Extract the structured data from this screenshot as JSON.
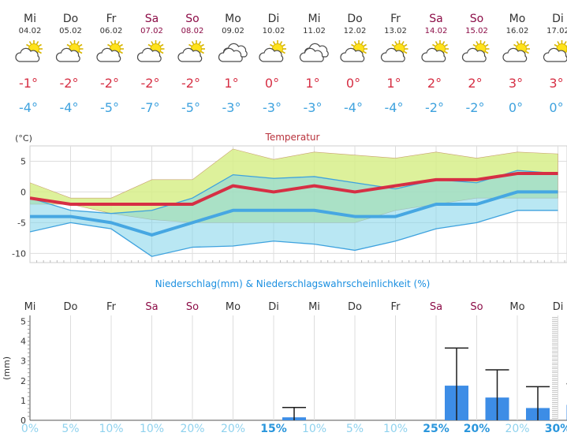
{
  "days": [
    {
      "name": "Mi",
      "date": "04.02",
      "weekend": false,
      "icon": "partly-cloudy-sun-icon",
      "max": "-1°",
      "min": "-4°"
    },
    {
      "name": "Do",
      "date": "05.02",
      "weekend": false,
      "icon": "partly-cloudy-sun-icon",
      "max": "-2°",
      "min": "-4°"
    },
    {
      "name": "Fr",
      "date": "06.02",
      "weekend": false,
      "icon": "partly-cloudy-sun-icon",
      "max": "-2°",
      "min": "-5°"
    },
    {
      "name": "Sa",
      "date": "07.02",
      "weekend": true,
      "icon": "partly-cloudy-sun-icon",
      "max": "-2°",
      "min": "-7°"
    },
    {
      "name": "So",
      "date": "08.02",
      "weekend": true,
      "icon": "partly-cloudy-sun-icon",
      "max": "-2°",
      "min": "-5°"
    },
    {
      "name": "Mo",
      "date": "09.02",
      "weekend": false,
      "icon": "cloudy-icon",
      "max": "1°",
      "min": "-3°"
    },
    {
      "name": "Di",
      "date": "10.02",
      "weekend": false,
      "icon": "partly-cloudy-sun-icon",
      "max": "0°",
      "min": "-3°"
    },
    {
      "name": "Mi",
      "date": "11.02",
      "weekend": false,
      "icon": "cloudy-icon",
      "max": "1°",
      "min": "-3°"
    },
    {
      "name": "Do",
      "date": "12.02",
      "weekend": false,
      "icon": "partly-cloudy-sun-icon",
      "max": "0°",
      "min": "-4°"
    },
    {
      "name": "Fr",
      "date": "13.02",
      "weekend": false,
      "icon": "partly-cloudy-sun-icon",
      "max": "1°",
      "min": "-4°"
    },
    {
      "name": "Sa",
      "date": "14.02",
      "weekend": true,
      "icon": "partly-cloudy-sun-icon",
      "max": "2°",
      "min": "-2°"
    },
    {
      "name": "So",
      "date": "15.02",
      "weekend": true,
      "icon": "partly-cloudy-sun-icon",
      "max": "2°",
      "min": "-2°"
    },
    {
      "name": "Mo",
      "date": "16.02",
      "weekend": false,
      "icon": "partly-cloudy-sun-icon",
      "max": "3°",
      "min": "0°"
    },
    {
      "name": "Di",
      "date": "17.02",
      "weekend": false,
      "icon": "partly-cloudy-sun-icon",
      "max": "3°",
      "min": "0°"
    }
  ],
  "colors": {
    "max": "#d62f44",
    "min": "#3ea2de",
    "weekend": "#8c0d47",
    "weekday": "#333333"
  },
  "chart_data": [
    {
      "type": "line",
      "title": "Temperatur",
      "ylabel": "(°C)",
      "ylim": [
        -11.5,
        7.5
      ],
      "yticks": [
        5,
        0,
        -5,
        -10
      ],
      "grid": true,
      "categories": [
        "Mi",
        "Do",
        "Fr",
        "Sa",
        "So",
        "Mo",
        "Di",
        "Mi",
        "Do",
        "Fr",
        "Sa",
        "So",
        "Mo",
        "Di"
      ],
      "series": [
        {
          "role": "max",
          "values": [
            -1,
            -2,
            -2,
            -2,
            -2,
            1,
            0,
            1,
            0,
            1,
            2,
            2,
            3,
            3
          ]
        },
        {
          "role": "min",
          "values": [
            -4,
            -4,
            -5,
            -7,
            -5,
            -3,
            -3,
            -3,
            -4,
            -4,
            -2,
            -2,
            0,
            0
          ]
        },
        {
          "role": "max-range-upper",
          "values": [
            1.5,
            -1,
            -1,
            2,
            2,
            7,
            5.3,
            6.5,
            6,
            5.5,
            6.5,
            5.5,
            6.5,
            6.2
          ]
        },
        {
          "role": "max-range-lower",
          "values": [
            -2,
            -2,
            -3.5,
            -4.5,
            -5,
            -5,
            -5,
            -5,
            -5,
            -3,
            -2,
            -1,
            -1,
            -1
          ]
        },
        {
          "role": "min-range-upper",
          "values": [
            -1,
            -3,
            -3.5,
            -3,
            -1,
            2.8,
            2.2,
            2.5,
            1.5,
            0.5,
            2,
            1.5,
            3.5,
            3
          ]
        },
        {
          "role": "min-range-lower",
          "values": [
            -6.5,
            -5,
            -6,
            -10.5,
            -9,
            -8.8,
            -8,
            -8.5,
            -9.5,
            -8,
            -6,
            -5,
            -3,
            -3
          ]
        }
      ]
    },
    {
      "type": "bar",
      "title": "Niederschlag(mm) & Niederschlagswahrscheinlichkeit (%)",
      "ylabel": "(mm)",
      "ylim": [
        0,
        5.3
      ],
      "yticks": [
        5,
        4,
        3,
        2,
        1,
        0
      ],
      "categories": [
        "Mi",
        "Do",
        "Fr",
        "Sa",
        "So",
        "Mo",
        "Di",
        "Mi",
        "Do",
        "Fr",
        "Sa",
        "So",
        "Mo",
        "Di"
      ],
      "values": [
        0,
        0,
        0,
        0,
        0,
        0,
        0.15,
        0,
        0,
        0,
        1.75,
        1.15,
        0.62,
        0.78
      ],
      "error_upper": [
        null,
        null,
        null,
        null,
        null,
        null,
        0.65,
        null,
        null,
        null,
        3.65,
        2.55,
        1.7,
        1.85
      ],
      "probabilities": [
        "0%",
        "5%",
        "10%",
        "10%",
        "20%",
        "20%",
        "15%",
        "10%",
        "5%",
        "10%",
        "25%",
        "20%",
        "20%",
        "30%"
      ],
      "probability_bold": [
        false,
        false,
        false,
        false,
        false,
        false,
        true,
        false,
        false,
        false,
        true,
        true,
        false,
        true
      ]
    }
  ]
}
